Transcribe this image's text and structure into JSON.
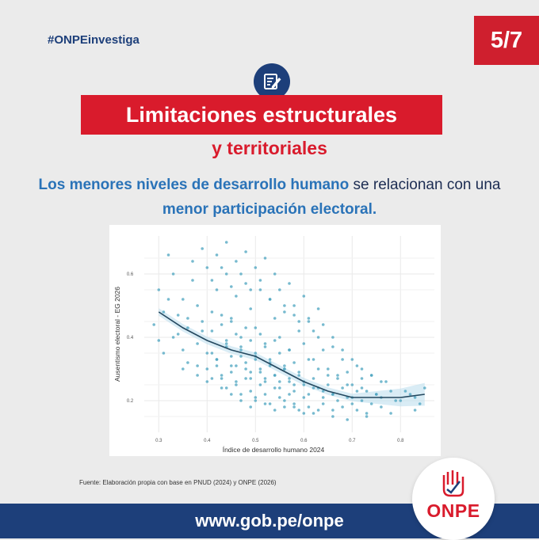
{
  "header": {
    "hashtag": "#ONPEinvestiga",
    "page": "5/7",
    "icon": "edit-document-icon"
  },
  "title": {
    "line1": "Limitaciones estructurales",
    "line2": "y territoriales"
  },
  "lead": {
    "part1": "Los menores niveles de desarrollo humano",
    "part2": " se relacionan con una ",
    "part3": "menor participación electoral."
  },
  "chart_data": {
    "type": "scatter",
    "title": "",
    "xlabel": "Índice de desarrollo humano 2024",
    "ylabel": "Ausentismo electoral - EG 2026",
    "xlim": [
      0.27,
      0.87
    ],
    "ylim": [
      0.1,
      0.72
    ],
    "xticks": [
      "0.3",
      "0.4",
      "0.5",
      "0.6",
      "0.7",
      "0.8"
    ],
    "yticks": [
      "0.2",
      "0.4",
      "0.6"
    ],
    "grid": true,
    "point_color": "#4aa3bf",
    "trend_color": "#23475e",
    "band_color": "#bfe0ee",
    "trend": {
      "x": [
        0.3,
        0.35,
        0.4,
        0.45,
        0.5,
        0.55,
        0.6,
        0.65,
        0.7,
        0.75,
        0.8,
        0.85
      ],
      "y": [
        0.48,
        0.43,
        0.39,
        0.36,
        0.34,
        0.3,
        0.26,
        0.23,
        0.21,
        0.21,
        0.21,
        0.22
      ]
    },
    "points": {
      "x": [
        0.29,
        0.3,
        0.31,
        0.32,
        0.33,
        0.34,
        0.35,
        0.36,
        0.37,
        0.38,
        0.39,
        0.4,
        0.41,
        0.42,
        0.43,
        0.44,
        0.45,
        0.46,
        0.47,
        0.48,
        0.49,
        0.5,
        0.51,
        0.52,
        0.53,
        0.54,
        0.55,
        0.56,
        0.57,
        0.58,
        0.59,
        0.6,
        0.61,
        0.62,
        0.63,
        0.64,
        0.65,
        0.66,
        0.67,
        0.68,
        0.69,
        0.7,
        0.71,
        0.72,
        0.73,
        0.74,
        0.75,
        0.76,
        0.78,
        0.8,
        0.82,
        0.84,
        0.85,
        0.31,
        0.34,
        0.36,
        0.38,
        0.4,
        0.41,
        0.42,
        0.43,
        0.44,
        0.45,
        0.46,
        0.47,
        0.48,
        0.49,
        0.5,
        0.51,
        0.52,
        0.53,
        0.54,
        0.55,
        0.56,
        0.57,
        0.58,
        0.59,
        0.6,
        0.61,
        0.62,
        0.63,
        0.64,
        0.65,
        0.66,
        0.67,
        0.68,
        0.69,
        0.7,
        0.71,
        0.72,
        0.74,
        0.76,
        0.79,
        0.81,
        0.83,
        0.33,
        0.37,
        0.39,
        0.41,
        0.42,
        0.43,
        0.44,
        0.45,
        0.46,
        0.47,
        0.48,
        0.49,
        0.5,
        0.51,
        0.52,
        0.53,
        0.54,
        0.55,
        0.56,
        0.57,
        0.58,
        0.59,
        0.6,
        0.61,
        0.62,
        0.63,
        0.64,
        0.66,
        0.68,
        0.7,
        0.72,
        0.74,
        0.77,
        0.35,
        0.38,
        0.4,
        0.42,
        0.43,
        0.44,
        0.45,
        0.46,
        0.47,
        0.48,
        0.49,
        0.5,
        0.51,
        0.52,
        0.53,
        0.54,
        0.55,
        0.56,
        0.57,
        0.58,
        0.59,
        0.6,
        0.61,
        0.62,
        0.64,
        0.66,
        0.68,
        0.71,
        0.73,
        0.76,
        0.32,
        0.36,
        0.39,
        0.41,
        0.43,
        0.44,
        0.45,
        0.46,
        0.47,
        0.48,
        0.49,
        0.5,
        0.51,
        0.52,
        0.53,
        0.54,
        0.55,
        0.56,
        0.57,
        0.58,
        0.59,
        0.61,
        0.63,
        0.65,
        0.67,
        0.69,
        0.72,
        0.75,
        0.4,
        0.42,
        0.44,
        0.45,
        0.46,
        0.47,
        0.48,
        0.49,
        0.5,
        0.51,
        0.52,
        0.53,
        0.54,
        0.55,
        0.56,
        0.57,
        0.58,
        0.6,
        0.62,
        0.64,
        0.66,
        0.7,
        0.3,
        0.35,
        0.38,
        0.41,
        0.43,
        0.45,
        0.47,
        0.49,
        0.5,
        0.52,
        0.54,
        0.56,
        0.58,
        0.6,
        0.63,
        0.66,
        0.69,
        0.73,
        0.78,
        0.83
      ],
      "y": [
        0.44,
        0.55,
        0.48,
        0.66,
        0.4,
        0.47,
        0.52,
        0.43,
        0.58,
        0.5,
        0.45,
        0.62,
        0.42,
        0.55,
        0.47,
        0.6,
        0.45,
        0.53,
        0.4,
        0.57,
        0.49,
        0.43,
        0.55,
        0.38,
        0.52,
        0.46,
        0.4,
        0.5,
        0.36,
        0.47,
        0.42,
        0.38,
        0.45,
        0.33,
        0.4,
        0.36,
        0.3,
        0.37,
        0.28,
        0.33,
        0.29,
        0.25,
        0.31,
        0.27,
        0.23,
        0.28,
        0.22,
        0.26,
        0.23,
        0.2,
        0.22,
        0.19,
        0.24,
        0.35,
        0.41,
        0.32,
        0.38,
        0.3,
        0.35,
        0.33,
        0.28,
        0.37,
        0.31,
        0.26,
        0.34,
        0.3,
        0.27,
        0.33,
        0.29,
        0.26,
        0.31,
        0.28,
        0.24,
        0.3,
        0.26,
        0.23,
        0.28,
        0.25,
        0.22,
        0.27,
        0.24,
        0.21,
        0.25,
        0.22,
        0.2,
        0.24,
        0.21,
        0.19,
        0.23,
        0.2,
        0.19,
        0.21,
        0.2,
        0.23,
        0.21,
        0.6,
        0.64,
        0.68,
        0.58,
        0.66,
        0.62,
        0.7,
        0.56,
        0.64,
        0.6,
        0.67,
        0.55,
        0.62,
        0.58,
        0.65,
        0.52,
        0.6,
        0.55,
        0.48,
        0.57,
        0.5,
        0.45,
        0.53,
        0.46,
        0.42,
        0.49,
        0.44,
        0.4,
        0.36,
        0.33,
        0.3,
        0.28,
        0.26,
        0.3,
        0.28,
        0.26,
        0.31,
        0.27,
        0.24,
        0.29,
        0.25,
        0.22,
        0.27,
        0.23,
        0.2,
        0.25,
        0.22,
        0.19,
        0.24,
        0.21,
        0.18,
        0.22,
        0.19,
        0.17,
        0.21,
        0.18,
        0.16,
        0.19,
        0.17,
        0.18,
        0.17,
        0.16,
        0.18,
        0.52,
        0.46,
        0.42,
        0.48,
        0.44,
        0.39,
        0.46,
        0.41,
        0.37,
        0.43,
        0.39,
        0.35,
        0.41,
        0.37,
        0.33,
        0.39,
        0.35,
        0.31,
        0.36,
        0.32,
        0.29,
        0.33,
        0.3,
        0.28,
        0.27,
        0.25,
        0.24,
        0.22,
        0.35,
        0.33,
        0.38,
        0.34,
        0.31,
        0.36,
        0.32,
        0.29,
        0.34,
        0.3,
        0.27,
        0.32,
        0.28,
        0.26,
        0.3,
        0.27,
        0.25,
        0.26,
        0.24,
        0.23,
        0.22,
        0.21,
        0.39,
        0.36,
        0.31,
        0.27,
        0.24,
        0.22,
        0.2,
        0.18,
        0.21,
        0.19,
        0.17,
        0.2,
        0.18,
        0.16,
        0.17,
        0.15,
        0.14,
        0.15,
        0.16,
        0.17
      ]
    }
  },
  "source": {
    "text": "Fuente: Elaboración propia con base en PNUD (2024) y ONPE (2026)"
  },
  "footer": {
    "url": "www.gob.pe/onpe"
  },
  "logo": {
    "text": "ONPE",
    "icon": "ballot-hand-icon"
  }
}
